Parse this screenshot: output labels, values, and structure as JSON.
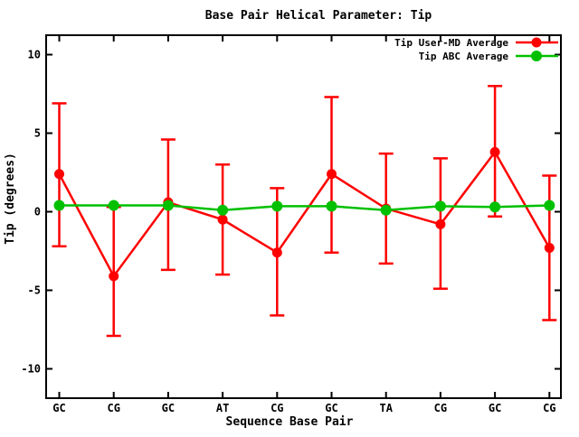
{
  "chart_data": {
    "type": "line",
    "title": "Base Pair Helical Parameter: Tip",
    "xlabel": "Sequence Base Pair",
    "ylabel": "Tip (degrees)",
    "categories": [
      "GC",
      "CG",
      "GC",
      "AT",
      "CG",
      "GC",
      "TA",
      "CG",
      "GC",
      "CG"
    ],
    "yticks": [
      10,
      5,
      0,
      -5,
      -10
    ],
    "ylim": [
      -11.9,
      11.2
    ],
    "grid": false,
    "legend_position": "top-right-inside",
    "series": [
      {
        "name": "Tip User-MD Average",
        "color": "#ff0000",
        "marker": "filled-circle",
        "values": [
          2.4,
          -4.1,
          0.6,
          -0.5,
          -2.6,
          2.4,
          0.2,
          -0.8,
          3.8,
          -2.3
        ],
        "err_top": [
          6.9,
          0.3,
          4.6,
          3.0,
          1.5,
          7.3,
          3.7,
          3.4,
          8.0,
          2.3
        ],
        "err_bottom": [
          -2.2,
          -7.9,
          -3.7,
          -4.0,
          -6.6,
          -2.6,
          -3.3,
          -4.9,
          -0.3,
          -6.9
        ]
      },
      {
        "name": "Tip ABC Average",
        "color": "#00c000",
        "marker": "filled-circle",
        "values": [
          0.4,
          0.4,
          0.4,
          0.1,
          0.35,
          0.35,
          0.1,
          0.35,
          0.3,
          0.4
        ]
      }
    ],
    "colors": {
      "background": "#ffffff",
      "axis": "#000000",
      "text": "#000000"
    }
  }
}
